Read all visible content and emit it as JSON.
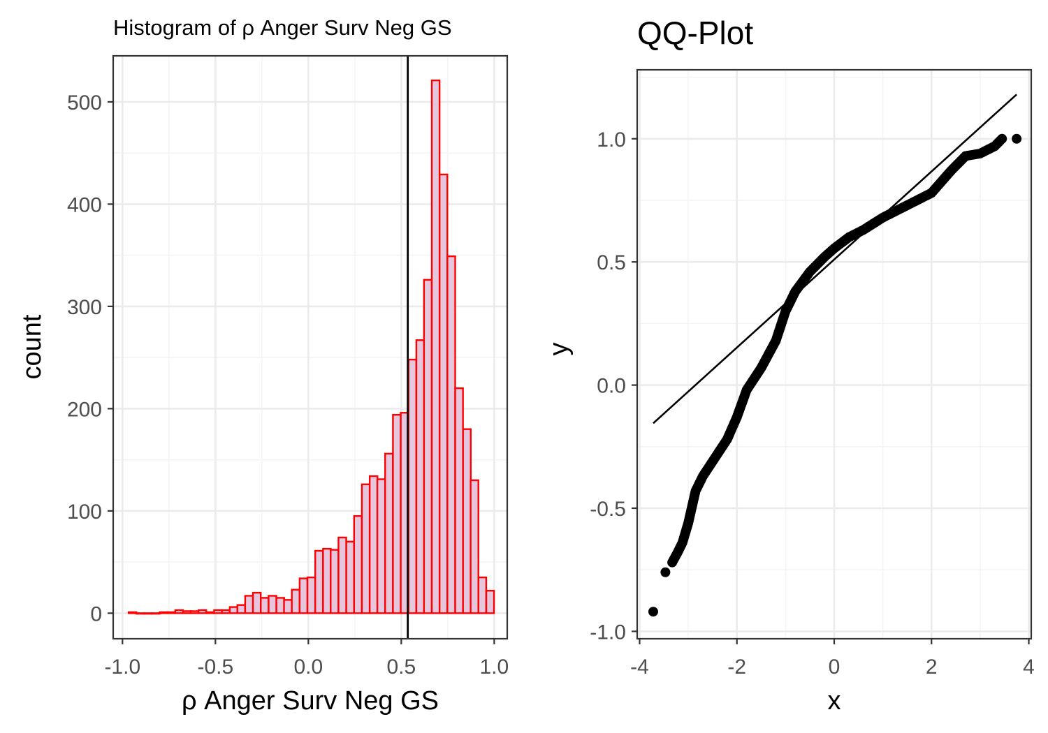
{
  "colors": {
    "bar_fill": "#e6c6dc",
    "bar_stroke": "#ff0000",
    "mean_line": "#000000",
    "qq_points": "#000000",
    "qq_line": "#000000",
    "grid": "#ebebeb",
    "panel_border": "#333333"
  },
  "chart_data": [
    {
      "type": "bar",
      "title": "Histogram of ρ Anger Surv Neg GS",
      "xlabel": "ρ Anger Surv Neg GS",
      "ylabel": "count",
      "xlim": [
        -1.05,
        1.07
      ],
      "ylim": [
        -25,
        545
      ],
      "x_ticks": [
        -1.0,
        -0.5,
        0.0,
        0.5,
        1.0
      ],
      "x_tick_labels": [
        "-1.0",
        "-0.5",
        "0.0",
        "0.5",
        "1.0"
      ],
      "y_ticks": [
        0,
        100,
        200,
        300,
        400,
        500
      ],
      "y_tick_labels": [
        "0",
        "100",
        "200",
        "300",
        "400",
        "500"
      ],
      "grid": true,
      "bin_width": 0.0418,
      "bin_centers": [
        -0.946,
        -0.904,
        -0.863,
        -0.821,
        -0.779,
        -0.737,
        -0.695,
        -0.653,
        -0.612,
        -0.57,
        -0.528,
        -0.486,
        -0.444,
        -0.402,
        -0.361,
        -0.319,
        -0.277,
        -0.235,
        -0.193,
        -0.151,
        -0.11,
        -0.068,
        -0.026,
        0.016,
        0.058,
        0.1,
        0.141,
        0.183,
        0.225,
        0.267,
        0.309,
        0.351,
        0.392,
        0.434,
        0.476,
        0.518,
        0.56,
        0.602,
        0.643,
        0.685,
        0.727,
        0.769,
        0.811,
        0.853,
        0.894,
        0.936,
        0.978
      ],
      "counts": [
        1,
        0,
        0,
        0,
        1,
        1,
        3,
        2,
        2,
        3,
        1,
        3,
        3,
        6,
        8,
        17,
        20,
        15,
        17,
        15,
        13,
        23,
        34,
        35,
        61,
        63,
        62,
        74,
        70,
        95,
        126,
        134,
        131,
        156,
        194,
        196,
        248,
        267,
        326,
        521,
        429,
        349,
        220,
        180,
        130,
        35,
        22
      ],
      "mean_line_x": 0.535
    },
    {
      "type": "scatter",
      "title": "QQ-Plot",
      "xlabel": "x",
      "ylabel": "y",
      "xlim": [
        -4.05,
        4.05
      ],
      "ylim": [
        -1.03,
        1.28
      ],
      "x_ticks": [
        -4,
        -2,
        0,
        2,
        4
      ],
      "x_tick_labels": [
        "-4",
        "-2",
        "0",
        "2",
        "4"
      ],
      "y_ticks": [
        -1.0,
        -0.5,
        0.0,
        0.5,
        1.0
      ],
      "y_tick_labels": [
        "-1.0",
        "-0.5",
        "0.0",
        "0.5",
        "1.0"
      ],
      "grid": true,
      "points_xy": [
        [
          -3.72,
          -0.92
        ],
        [
          -3.47,
          -0.76
        ],
        [
          -3.33,
          -0.72
        ],
        [
          -3.22,
          -0.68
        ],
        [
          -3.12,
          -0.64
        ],
        [
          -3.0,
          -0.56
        ],
        [
          -2.85,
          -0.43
        ],
        [
          -2.7,
          -0.37
        ],
        [
          -2.5,
          -0.31
        ],
        [
          -2.2,
          -0.22
        ],
        [
          -2.0,
          -0.13
        ],
        [
          -1.8,
          -0.02
        ],
        [
          -1.5,
          0.07
        ],
        [
          -1.2,
          0.18
        ],
        [
          -1.0,
          0.3
        ],
        [
          -0.8,
          0.38
        ],
        [
          -0.5,
          0.46
        ],
        [
          -0.2,
          0.52
        ],
        [
          0.0,
          0.555
        ],
        [
          0.3,
          0.6
        ],
        [
          0.6,
          0.63
        ],
        [
          1.0,
          0.68
        ],
        [
          1.5,
          0.73
        ],
        [
          2.0,
          0.78
        ],
        [
          2.4,
          0.87
        ],
        [
          2.7,
          0.93
        ],
        [
          3.0,
          0.94
        ],
        [
          3.3,
          0.97
        ],
        [
          3.45,
          1.0
        ],
        [
          3.75,
          1.0
        ]
      ],
      "reference_line": [
        [
          -3.72,
          -0.155
        ],
        [
          3.75,
          1.18
        ]
      ]
    }
  ]
}
